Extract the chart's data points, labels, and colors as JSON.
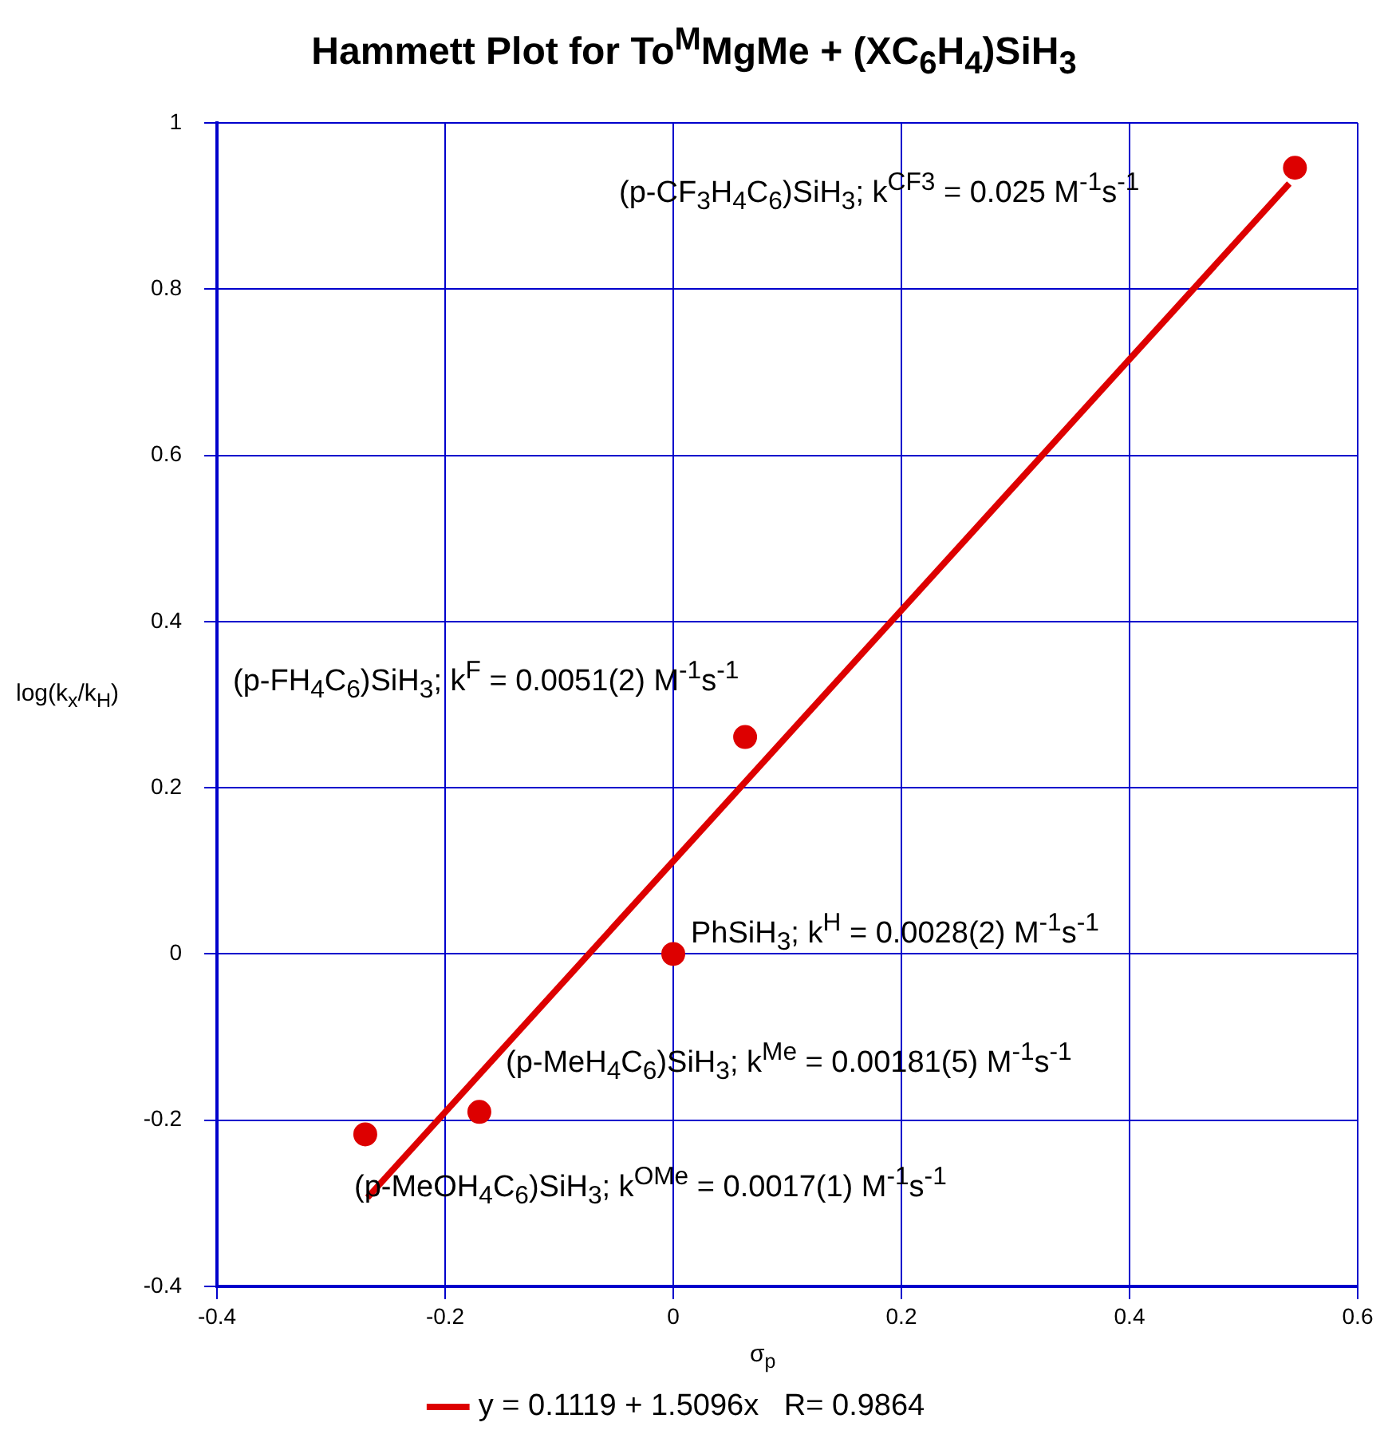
{
  "chart_data": {
    "type": "scatter",
    "title": "Hammett Plot for To$^{M}$MgMe + (XC$_{6}$H$_{4}$)SiH$_{3}$",
    "xlabel": "σ$_{p}$",
    "ylabel": "log(k$_{x}$/k$_{H}$)",
    "xlim": [
      -0.4,
      0.6
    ],
    "xticks": [
      -0.4,
      -0.2,
      0,
      0.2,
      0.4,
      0.6
    ],
    "ylim": [
      -0.4,
      1
    ],
    "yticks": [
      -0.4,
      -0.2,
      0,
      0.2,
      0.4,
      0.6,
      0.8,
      1
    ],
    "grid": true,
    "legend": "bottom",
    "marker": "circle",
    "series": [
      {
        "color": "#dd0000",
        "x": [
          -0.27,
          -0.17,
          0,
          0.063,
          0.545
        ],
        "values": [
          -0.217,
          -0.19,
          0,
          0.261,
          0.946
        ]
      },
      {
        "type": "line",
        "name": "y = 0.1119 + 1.5096x   R= 0.9864",
        "color": "#dd0000",
        "marker": "none",
        "x": [
          -0.268,
          0.54
        ],
        "values": [
          -0.293,
          0.927
        ]
      }
    ],
    "annotations": [
      "(p-CF$_{3}$H$_{4}$C$_{6}$)SiH$_{3}$; k$^{CF3}$ = 0.025 M$^{-1}$s$^{-1}$",
      "(p-FH$_{4}$C$_{6}$)SiH$_{3}$; k$^{F}$ = 0.0051(2) M$^{-1}$s$^{-1}$",
      "PhSiH$_{3}$; k$^{H}$ = 0.0028(2) M$^{-1}$s$^{-1}$",
      "(p-MeH$_{4}$C$_{6}$)SiH$_{3}$; k$^{Me}$ = 0.00181(5) M$^{-1}$s$^{-1}$",
      "(p-MeOH$_{4}$C$_{6}$)SiH$_{3}$; k$^{OMe}$ = 0.0017(1) M$^{-1}$s$^{-1}$"
    ]
  }
}
